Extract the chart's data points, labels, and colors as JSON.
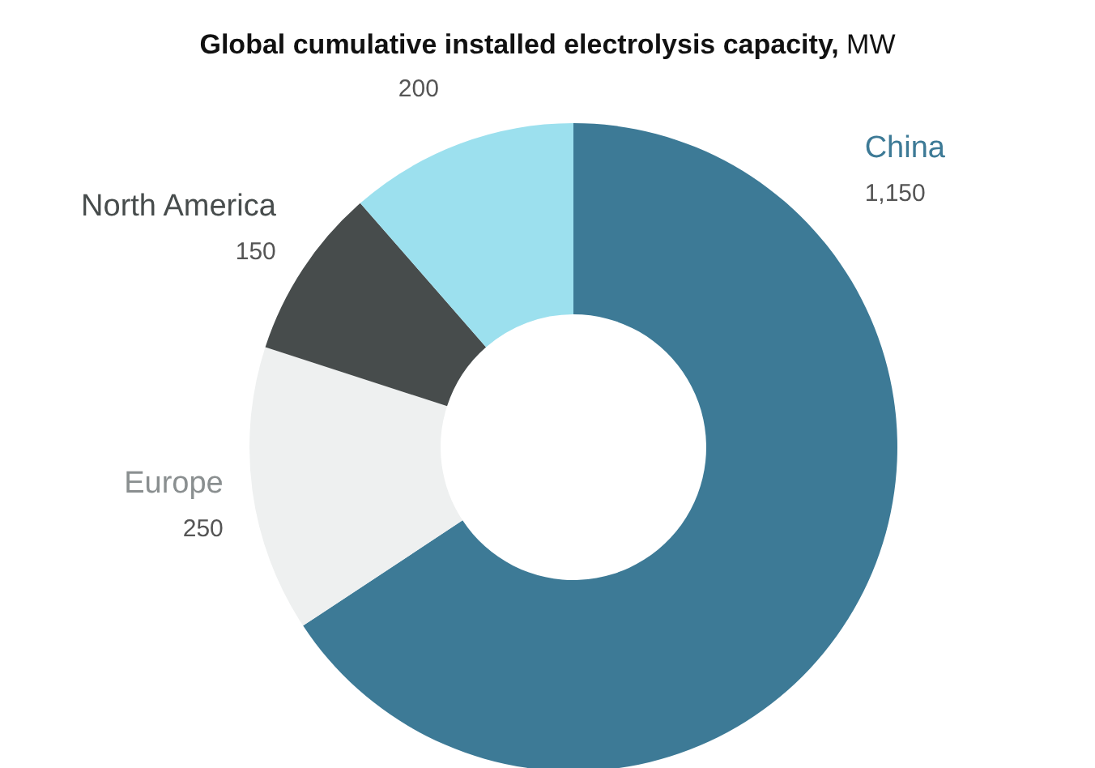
{
  "chart_data": {
    "type": "donut",
    "title": "Global cumulative installed electrolysis capacity, MW",
    "categories": [
      "China",
      "Europe",
      "North America",
      null
    ],
    "values": [
      1150,
      250,
      150,
      200
    ],
    "colors": [
      "#3d7a96",
      "#eef0f0",
      "#474c4c",
      "#9ce0ee"
    ],
    "value_labels": [
      "1,150",
      "250",
      "150",
      "200"
    ],
    "legend": false
  }
}
